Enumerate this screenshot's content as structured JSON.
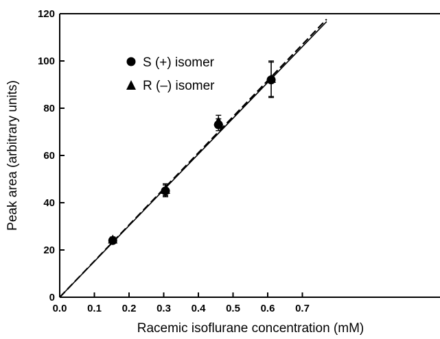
{
  "chart_data": {
    "type": "scatter",
    "xlabel": "Racemic isoflurane concentration (mM)",
    "ylabel": "Peak area (arbitrary units)",
    "xlim": [
      0,
      0.75
    ],
    "ylim": [
      0,
      120
    ],
    "xticks": [
      "0.0",
      "0.1",
      "0.2",
      "0.3",
      "0.4",
      "0.5",
      "0.6",
      "0.7"
    ],
    "yticks": [
      "0",
      "20",
      "40",
      "60",
      "80",
      "100",
      "120"
    ],
    "grid": false,
    "legend_position": "top-left",
    "series": [
      {
        "name": "S (+) isomer",
        "marker": "circle",
        "x": [
          0.153,
          0.305,
          0.458,
          0.61
        ],
        "y": [
          24,
          45,
          73,
          92
        ],
        "yerr": [
          1,
          2.5,
          2.5,
          7.5
        ],
        "fit_line": {
          "style": "solid",
          "slope": 151.5,
          "intercept": 0
        }
      },
      {
        "name": "R (–) isomer",
        "marker": "triangle",
        "x": [
          0.153,
          0.305,
          0.458,
          0.61
        ],
        "y": [
          24.5,
          45.5,
          74.5,
          92.5
        ],
        "yerr": [
          1,
          2.5,
          2.5,
          7.5
        ],
        "fit_line": {
          "style": "dashed",
          "slope": 152.8,
          "intercept": 0
        }
      }
    ]
  }
}
